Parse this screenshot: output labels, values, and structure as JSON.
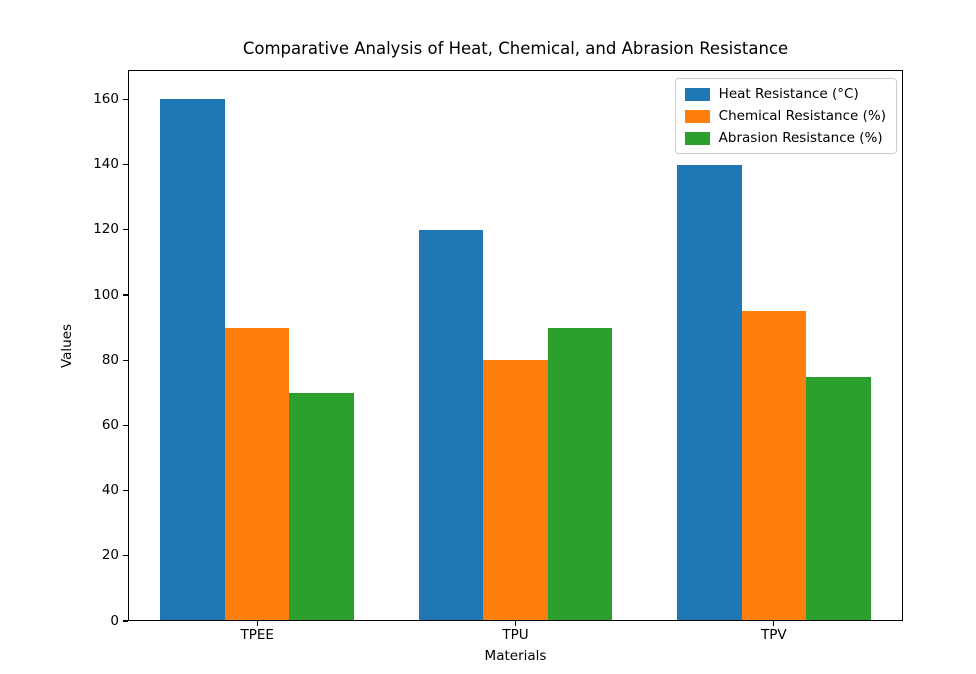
{
  "figure": {
    "background": "#ffffff",
    "text_color": "#000000",
    "legend_border_color": "#cccccc"
  },
  "chart_data": {
    "type": "bar",
    "title": "Comparative Analysis of Heat, Chemical, and Abrasion Resistance",
    "xlabel": "Materials",
    "ylabel": "Values",
    "categories": [
      "TPEE",
      "TPU",
      "TPV"
    ],
    "series": [
      {
        "name": "Heat Resistance (°C)",
        "color": "#1f77b4",
        "values": [
          160,
          120,
          140
        ]
      },
      {
        "name": "Chemical Resistance (%)",
        "color": "#ff7f0e",
        "values": [
          90,
          80,
          95
        ]
      },
      {
        "name": "Abrasion Resistance (%)",
        "color": "#2ca02c",
        "values": [
          70,
          90,
          75
        ]
      }
    ],
    "yticks": [
      0,
      20,
      40,
      60,
      80,
      100,
      120,
      140,
      160
    ],
    "ylim": [
      0,
      169
    ],
    "legend_position": "upper right",
    "grid": false,
    "axis_color": "#000000"
  }
}
